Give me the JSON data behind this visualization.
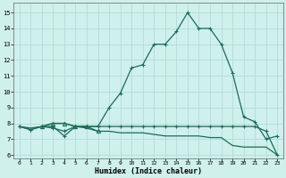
{
  "xlabel": "Humidex (Indice chaleur)",
  "bg_color": "#cff0eb",
  "grid_color": "#b0ddd8",
  "line_color": "#1a6b5a",
  "xlim": [
    -0.5,
    23.5
  ],
  "ylim": [
    5.8,
    15.6
  ],
  "yticks": [
    6,
    7,
    8,
    9,
    10,
    11,
    12,
    13,
    14,
    15
  ],
  "xticks": [
    0,
    1,
    2,
    3,
    4,
    5,
    6,
    7,
    8,
    9,
    10,
    11,
    12,
    13,
    14,
    15,
    16,
    17,
    18,
    19,
    20,
    21,
    22,
    23
  ],
  "s1": [
    7.8,
    7.6,
    7.8,
    7.7,
    7.5,
    7.8,
    7.8,
    7.8,
    9.0,
    9.9,
    11.5,
    11.7,
    13.0,
    13.0,
    13.8,
    15.0,
    14.0,
    14.0,
    13.0,
    11.2,
    8.4,
    8.1,
    7.0,
    7.2
  ],
  "s2": [
    7.8,
    7.6,
    7.8,
    7.8,
    7.2,
    7.8,
    7.8,
    7.8,
    7.8,
    7.8,
    7.8,
    7.8,
    7.8,
    7.8,
    7.8,
    7.8,
    7.8,
    7.8,
    7.8,
    7.8,
    7.8,
    7.8,
    7.5,
    6.0
  ],
  "s3": [
    7.8,
    7.7,
    7.8,
    8.0,
    8.0,
    7.8,
    7.7,
    7.5,
    7.5,
    7.4,
    7.4,
    7.4,
    7.3,
    7.2,
    7.2,
    7.2,
    7.2,
    7.1,
    7.1,
    6.6,
    6.5,
    6.5,
    6.5,
    6.0
  ],
  "s4_x": [
    2,
    3,
    4,
    5,
    6,
    7
  ],
  "s4_y": [
    7.8,
    8.0,
    8.0,
    7.8,
    7.8,
    7.5
  ],
  "s1_markers_x": [
    0,
    1,
    2,
    3,
    4,
    5,
    6,
    7,
    8,
    9,
    10,
    11,
    12,
    13,
    14,
    15,
    16,
    17,
    18,
    19,
    20,
    21,
    22,
    23
  ],
  "s2_markers_x": [
    0,
    1,
    2,
    3,
    4,
    5,
    6,
    7,
    8,
    9,
    10,
    11,
    12,
    13,
    14,
    15,
    16,
    17,
    18,
    19,
    20,
    21,
    22,
    23
  ]
}
